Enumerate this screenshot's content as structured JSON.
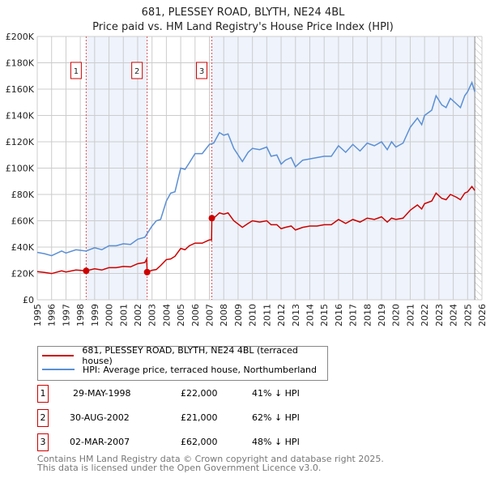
{
  "chart_data": {
    "type": "line",
    "title": "681, PLESSEY ROAD, BLYTH, NE24 4BL",
    "subtitle": "Price paid vs. HM Land Registry's House Price Index (HPI)",
    "xlim": [
      1995,
      2026
    ],
    "ylim": [
      0,
      200000
    ],
    "x_ticks": [
      "1995",
      "1996",
      "1997",
      "1998",
      "1999",
      "2000",
      "2001",
      "2002",
      "2003",
      "2004",
      "2005",
      "2006",
      "2007",
      "2008",
      "2009",
      "2010",
      "2011",
      "2012",
      "2013",
      "2014",
      "2015",
      "2016",
      "2017",
      "2018",
      "2019",
      "2020",
      "2021",
      "2022",
      "2023",
      "2024",
      "2025",
      "2026"
    ],
    "y_ticks": [
      {
        "v": 0,
        "l": "£0"
      },
      {
        "v": 20000,
        "l": "£20K"
      },
      {
        "v": 40000,
        "l": "£40K"
      },
      {
        "v": 60000,
        "l": "£60K"
      },
      {
        "v": 80000,
        "l": "£80K"
      },
      {
        "v": 100000,
        "l": "£100K"
      },
      {
        "v": 120000,
        "l": "£120K"
      },
      {
        "v": 140000,
        "l": "£140K"
      },
      {
        "v": 160000,
        "l": "£160K"
      },
      {
        "v": 180000,
        "l": "£180K"
      },
      {
        "v": 200000,
        "l": "£200K"
      }
    ],
    "grid": true,
    "series": [
      {
        "name": "681, PLESSEY ROAD, BLYTH, NE24 4BL (terraced house)",
        "color": "#cc0000",
        "points": [
          [
            1995,
            21.4
          ],
          [
            1995.5,
            20.8
          ],
          [
            1996,
            19.9
          ],
          [
            1996.7,
            22
          ],
          [
            1997,
            21.1
          ],
          [
            1997.7,
            22.6
          ],
          [
            1998.4,
            22
          ],
          [
            1999,
            23.5
          ],
          [
            1999.5,
            22.6
          ],
          [
            2000,
            24.4
          ],
          [
            2000.5,
            24.4
          ],
          [
            2001,
            25.3
          ],
          [
            2001.5,
            25
          ],
          [
            2002,
            27.4
          ],
          [
            2002.5,
            28.3
          ],
          [
            2002.63,
            31
          ],
          [
            2002.66,
            21
          ],
          [
            2003,
            22.4
          ],
          [
            2003.3,
            23
          ],
          [
            2003.6,
            26
          ],
          [
            2004,
            30.5
          ],
          [
            2004.3,
            31
          ],
          [
            2004.6,
            33
          ],
          [
            2005,
            39
          ],
          [
            2005.3,
            38
          ],
          [
            2005.6,
            41
          ],
          [
            2006,
            43
          ],
          [
            2006.5,
            43
          ],
          [
            2007,
            45.5
          ],
          [
            2007.15,
            45.5
          ],
          [
            2007.17,
            62
          ],
          [
            2007.3,
            62
          ],
          [
            2007.7,
            66
          ],
          [
            2008,
            65
          ],
          [
            2008.3,
            66
          ],
          [
            2008.7,
            60
          ],
          [
            2009.3,
            55
          ],
          [
            2009.7,
            58
          ],
          [
            2010,
            60
          ],
          [
            2010.5,
            59
          ],
          [
            2011,
            60
          ],
          [
            2011.3,
            57
          ],
          [
            2011.7,
            57
          ],
          [
            2012,
            54
          ],
          [
            2012.3,
            55
          ],
          [
            2012.7,
            56
          ],
          [
            2013,
            53
          ],
          [
            2013.5,
            55
          ],
          [
            2014,
            56
          ],
          [
            2014.5,
            56
          ],
          [
            2015,
            57
          ],
          [
            2015.5,
            57
          ],
          [
            2016,
            61
          ],
          [
            2016.5,
            58
          ],
          [
            2017,
            61
          ],
          [
            2017.5,
            59
          ],
          [
            2018,
            62
          ],
          [
            2018.5,
            61
          ],
          [
            2019,
            63
          ],
          [
            2019.4,
            59
          ],
          [
            2019.7,
            62
          ],
          [
            2020,
            61
          ],
          [
            2020.5,
            62
          ],
          [
            2021,
            68
          ],
          [
            2021.5,
            72
          ],
          [
            2021.8,
            69
          ],
          [
            2022,
            73
          ],
          [
            2022.5,
            75
          ],
          [
            2022.8,
            81
          ],
          [
            2023.2,
            77
          ],
          [
            2023.5,
            76
          ],
          [
            2023.8,
            80
          ],
          [
            2024.2,
            78
          ],
          [
            2024.5,
            76
          ],
          [
            2024.8,
            81
          ],
          [
            2025,
            82
          ],
          [
            2025.3,
            86
          ],
          [
            2025.5,
            83
          ]
        ]
      },
      {
        "name": "HPI: Average price, terraced house, Northumberland",
        "color": "#5b8fd4",
        "points": [
          [
            1995,
            36
          ],
          [
            1995.5,
            35
          ],
          [
            1996,
            33.5
          ],
          [
            1996.7,
            37
          ],
          [
            1997,
            35.5
          ],
          [
            1997.7,
            38
          ],
          [
            1998.4,
            37
          ],
          [
            1999,
            39.5
          ],
          [
            1999.5,
            38
          ],
          [
            2000,
            41
          ],
          [
            2000.5,
            41
          ],
          [
            2001,
            42.5
          ],
          [
            2001.5,
            42
          ],
          [
            2002,
            46
          ],
          [
            2002.5,
            47.5
          ],
          [
            2003,
            56
          ],
          [
            2003.3,
            60
          ],
          [
            2003.6,
            61
          ],
          [
            2004,
            75
          ],
          [
            2004.3,
            81
          ],
          [
            2004.6,
            82
          ],
          [
            2005,
            100
          ],
          [
            2005.3,
            99
          ],
          [
            2005.6,
            104
          ],
          [
            2006,
            111
          ],
          [
            2006.5,
            111
          ],
          [
            2007,
            118
          ],
          [
            2007.3,
            119
          ],
          [
            2007.7,
            127
          ],
          [
            2008,
            125
          ],
          [
            2008.3,
            126
          ],
          [
            2008.7,
            115
          ],
          [
            2009.3,
            105
          ],
          [
            2009.7,
            112
          ],
          [
            2010,
            115
          ],
          [
            2010.5,
            114
          ],
          [
            2011,
            116
          ],
          [
            2011.3,
            109
          ],
          [
            2011.7,
            110
          ],
          [
            2012,
            103
          ],
          [
            2012.3,
            106
          ],
          [
            2012.7,
            108
          ],
          [
            2013,
            101
          ],
          [
            2013.5,
            106
          ],
          [
            2014,
            107
          ],
          [
            2014.5,
            108
          ],
          [
            2015,
            109
          ],
          [
            2015.5,
            109
          ],
          [
            2016,
            117
          ],
          [
            2016.5,
            112
          ],
          [
            2017,
            118
          ],
          [
            2017.5,
            113
          ],
          [
            2018,
            119
          ],
          [
            2018.5,
            117
          ],
          [
            2019,
            120
          ],
          [
            2019.4,
            114
          ],
          [
            2019.7,
            120
          ],
          [
            2020,
            116
          ],
          [
            2020.5,
            119
          ],
          [
            2021,
            131
          ],
          [
            2021.5,
            138
          ],
          [
            2021.8,
            133
          ],
          [
            2022,
            140
          ],
          [
            2022.5,
            144
          ],
          [
            2022.8,
            155
          ],
          [
            2023.2,
            148
          ],
          [
            2023.5,
            146
          ],
          [
            2023.8,
            153
          ],
          [
            2024.2,
            149
          ],
          [
            2024.5,
            146
          ],
          [
            2024.8,
            155
          ],
          [
            2025,
            158
          ],
          [
            2025.3,
            165
          ],
          [
            2025.5,
            158
          ]
        ]
      }
    ],
    "sales": [
      {
        "n": "1",
        "x": 1998.41,
        "y": 22000
      },
      {
        "n": "2",
        "x": 2002.66,
        "y": 21000
      },
      {
        "n": "3",
        "x": 2007.17,
        "y": 62000
      }
    ],
    "shaded_ranges": [
      [
        1998.41,
        2002.66
      ],
      [
        2007.17,
        2025.5
      ]
    ],
    "forecast_hatch_from": 2025.5,
    "legend_position": "below"
  },
  "table": [
    {
      "n": "1",
      "date": "29-MAY-1998",
      "price": "£22,000",
      "hpi": "41% ↓ HPI"
    },
    {
      "n": "2",
      "date": "30-AUG-2002",
      "price": "£21,000",
      "hpi": "62% ↓ HPI"
    },
    {
      "n": "3",
      "date": "02-MAR-2007",
      "price": "£62,000",
      "hpi": "48% ↓ HPI"
    }
  ],
  "footer": [
    "Contains HM Land Registry data © Crown copyright and database right 2025.",
    "This data is licensed under the Open Government Licence v3.0."
  ]
}
